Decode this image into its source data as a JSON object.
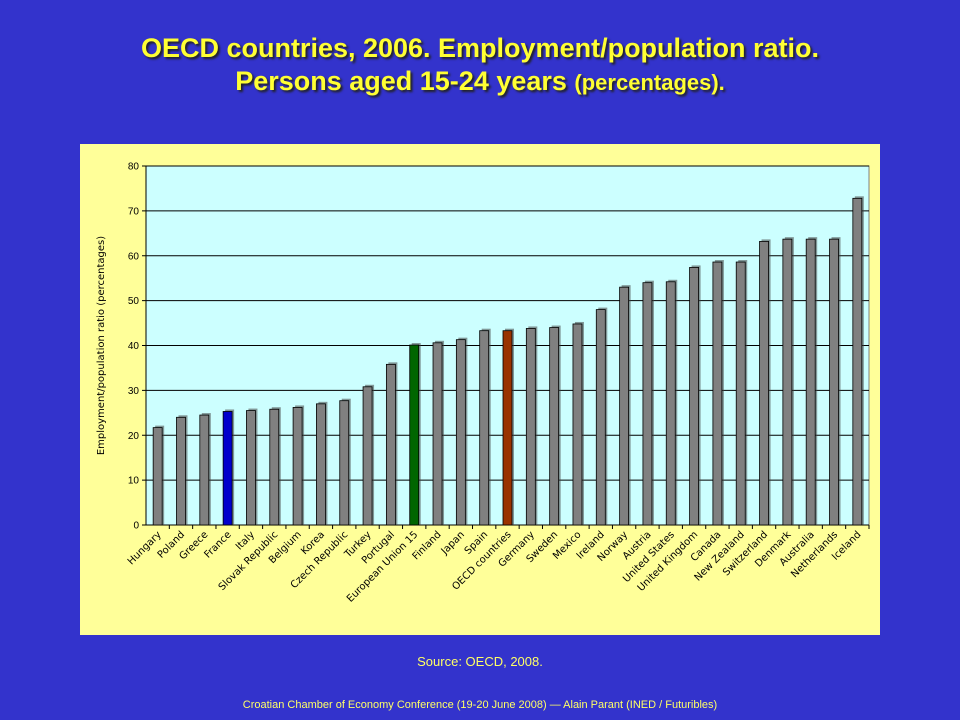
{
  "title": {
    "line1": "OECD countries, 2006. Employment/population ratio.",
    "line2_main": "Persons aged  15-24 years ",
    "line2_small": "(percentages)."
  },
  "source": "Source: OECD, 2008.",
  "footer": "Croatian Chamber of Economy Conference (19-20 June 2008) — Alain Parant (INED / Futuribles)",
  "colors": {
    "background": "#3333cc",
    "title": "#ffff33",
    "chart_frame": "#ffff99",
    "plot_area": "#ccffff",
    "bar_default": "#808080",
    "bar_france": "#0000cc",
    "bar_eu15": "#006600",
    "bar_oecd": "#993300"
  },
  "chart_data": {
    "type": "bar",
    "title": "",
    "xlabel": "",
    "ylabel": "Employment/population ratio (percentages)",
    "ylim": [
      0,
      80
    ],
    "yticks": [
      0,
      10,
      20,
      30,
      40,
      50,
      60,
      70,
      80
    ],
    "grid": true,
    "categories": [
      "Hungary",
      "Poland",
      "Greece",
      "France",
      "Italy",
      "Slovak Republic",
      "Belgium",
      "Korea",
      "Czech Republic",
      "Turkey",
      "Portugal",
      "European Union 15",
      "Finland",
      "Japan",
      "Spain",
      "OECD countries",
      "Germany",
      "Sweden",
      "Mexico",
      "Ireland",
      "Norway",
      "Austria",
      "United States",
      "United Kingdom",
      "Canada",
      "New Zealand",
      "Switzerland",
      "Denmark",
      "Australia",
      "Netherlands",
      "Iceland"
    ],
    "values": [
      21.7,
      24.0,
      24.5,
      25.3,
      25.5,
      25.8,
      26.2,
      27.0,
      27.7,
      30.8,
      35.8,
      40.1,
      40.6,
      41.3,
      43.3,
      43.3,
      43.8,
      44.0,
      44.8,
      48.0,
      53.0,
      54.0,
      54.2,
      57.4,
      58.6,
      58.6,
      63.2,
      63.7,
      63.7,
      63.7,
      72.8
    ],
    "highlight": {
      "France": "#0000cc",
      "European Union 15": "#006600",
      "OECD countries": "#993300"
    }
  }
}
